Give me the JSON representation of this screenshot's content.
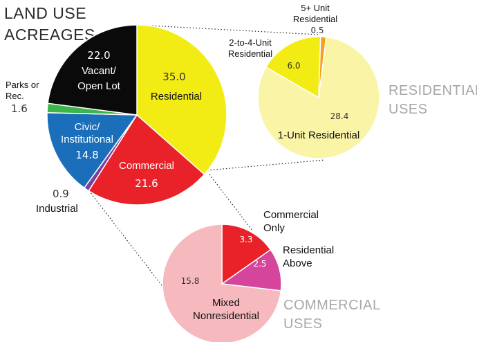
{
  "titles": {
    "main_line1": "LAND USE",
    "main_line2": "ACREAGES",
    "residential_line1": "RESIDENTIAL",
    "residential_line2": "USES",
    "commercial_line1": "COMMERCIAL",
    "commercial_line2": "USES"
  },
  "colors": {
    "residential": "#f2ec14",
    "commercial": "#e82228",
    "industrial": "#7b3fa0",
    "civic": "#1b6eb9",
    "parks": "#3db54a",
    "vacant": "#0a0a0a",
    "res_2to4": "#f2ec14",
    "res_5plus": "#f6a01a",
    "res_1unit": "#f9f4a6",
    "com_only": "#e82228",
    "com_res_above": "#d5459b",
    "com_mixed": "#f6b9bd",
    "subtitle_gray": "#a8a8a8"
  },
  "chart_data": [
    {
      "type": "pie",
      "title": "LAND USE ACREAGES",
      "slices": [
        {
          "label": "Residential",
          "value": 35.0,
          "value_text": "35.0"
        },
        {
          "label": "Commercial",
          "value": 21.6,
          "value_text": "21.6"
        },
        {
          "label": "Industrial",
          "value": 0.9,
          "value_text": "0.9"
        },
        {
          "label": "Civic/ Institutional",
          "label_line1": "Civic/",
          "label_line2": "Institutional",
          "value": 14.8,
          "value_text": "14.8"
        },
        {
          "label": "Parks or Rec.",
          "label_line1": "Parks or",
          "label_line2": "Rec.",
          "value": 1.6,
          "value_text": "1.6"
        },
        {
          "label": "Vacant/ Open Lot",
          "label_line1": "Vacant/",
          "label_line2": "Open Lot",
          "value": 22.0,
          "value_text": "22.0"
        }
      ]
    },
    {
      "type": "pie",
      "title": "RESIDENTIAL USES",
      "slices": [
        {
          "label": "1-Unit Residential",
          "value": 28.4,
          "value_text": "28.4"
        },
        {
          "label": "2-to-4-Unit Residential",
          "label_line1": "2-to-4-Unit",
          "label_line2": "Residential",
          "value": 6.0,
          "value_text": "6.0"
        },
        {
          "label": "5+ Unit Residential",
          "label_line1": "5+ Unit",
          "label_line2": "Residential",
          "value": 0.5,
          "value_text": "0.5"
        }
      ]
    },
    {
      "type": "pie",
      "title": "COMMERCIAL USES",
      "slices": [
        {
          "label": "Commercial Only",
          "label_line1": "Commercial",
          "label_line2": "Only",
          "value": 3.3,
          "value_text": "3.3"
        },
        {
          "label": "Residential Above",
          "label_line1": "Residential",
          "label_line2": "Above",
          "value": 2.5,
          "value_text": "2.5"
        },
        {
          "label": "Mixed Nonresidential",
          "label_line1": "Mixed",
          "label_line2": "Nonresidential",
          "value": 15.8,
          "value_text": "15.8"
        }
      ]
    }
  ]
}
